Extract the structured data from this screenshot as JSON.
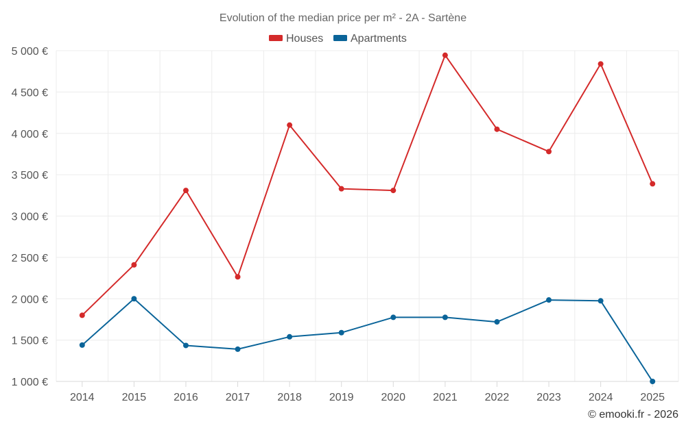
{
  "chart_data": {
    "type": "line",
    "title": "Evolution of the median price per m² - 2A - Sartène",
    "categories": [
      "2014",
      "2015",
      "2016",
      "2017",
      "2018",
      "2019",
      "2020",
      "2021",
      "2022",
      "2023",
      "2024",
      "2025"
    ],
    "series": [
      {
        "name": "Houses",
        "color": "#d42a2a",
        "values": [
          1800,
          2410,
          3310,
          2265,
          4100,
          3330,
          3310,
          4945,
          4050,
          3780,
          4840,
          3390
        ]
      },
      {
        "name": "Apartments",
        "color": "#0a6499",
        "values": [
          1440,
          2000,
          1435,
          1390,
          1540,
          1590,
          1775,
          1775,
          1720,
          1985,
          1975,
          1000
        ]
      }
    ],
    "ylim": [
      1000,
      5000
    ],
    "yticks": [
      1000,
      1500,
      2000,
      2500,
      3000,
      3500,
      4000,
      4500,
      5000
    ],
    "ytick_labels": [
      "1 000 €",
      "1 500 €",
      "2 000 €",
      "2 500 €",
      "3 000 €",
      "3 500 €",
      "4 000 €",
      "4 500 €",
      "5 000 €"
    ],
    "xlabel": "",
    "ylabel": "",
    "grid": true,
    "legend_position": "top-center"
  },
  "credit": "© emooki.fr - 2026"
}
